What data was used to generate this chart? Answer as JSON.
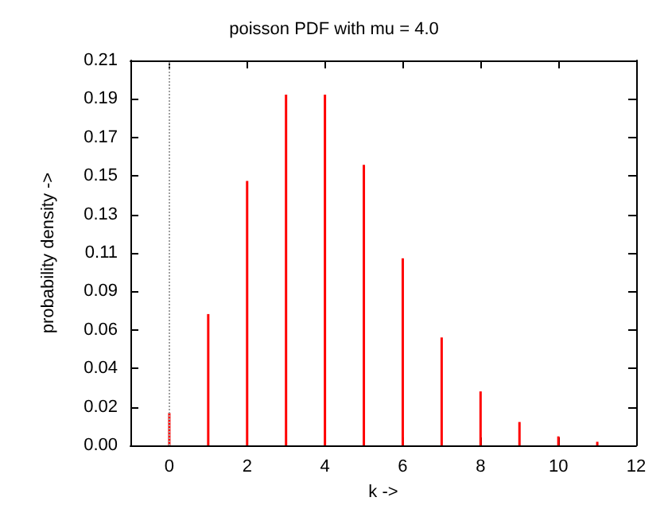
{
  "chart_data": {
    "type": "bar",
    "title": "poisson PDF with mu = 4.0",
    "xlabel": "k ->",
    "ylabel": "probability density ->",
    "x": [
      0,
      1,
      2,
      3,
      4,
      5,
      6,
      7,
      8,
      9,
      10,
      11
    ],
    "values": [
      0.018,
      0.073,
      0.147,
      0.195,
      0.195,
      0.156,
      0.104,
      0.06,
      0.03,
      0.013,
      0.005,
      0.002
    ],
    "color": "#ff0000",
    "xlim": [
      -1,
      12
    ],
    "xticks": [
      0,
      2,
      4,
      6,
      8,
      10,
      12
    ],
    "ylim": [
      0,
      0.214
    ],
    "yticks": [
      {
        "value": 0,
        "label": "0.00"
      },
      {
        "value": 0.0214,
        "label": "0.02"
      },
      {
        "value": 0.0428,
        "label": "0.04"
      },
      {
        "value": 0.0642,
        "label": "0.06"
      },
      {
        "value": 0.0856,
        "label": "0.09"
      },
      {
        "value": 0.107,
        "label": "0.11"
      },
      {
        "value": 0.1284,
        "label": "0.13"
      },
      {
        "value": 0.1498,
        "label": "0.15"
      },
      {
        "value": 0.1712,
        "label": "0.17"
      },
      {
        "value": 0.1926,
        "label": "0.19"
      },
      {
        "value": 0.214,
        "label": "0.21"
      }
    ],
    "ref_lines": [
      {
        "axis": "x",
        "value": 0,
        "color": "#a0a0a0",
        "line_style": "dotted"
      }
    ]
  }
}
